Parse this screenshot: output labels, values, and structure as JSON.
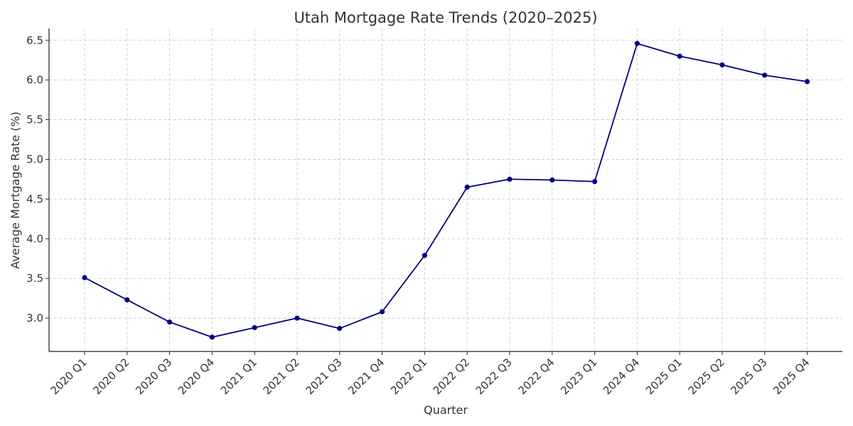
{
  "chart_data": {
    "type": "line",
    "title": "Utah Mortgage Rate Trends (2020–2025)",
    "xlabel": "Quarter",
    "ylabel": "Average Mortgage Rate (%)",
    "categories": [
      "2020 Q1",
      "2020 Q2",
      "2020 Q3",
      "2020 Q4",
      "2021 Q1",
      "2021 Q2",
      "2021 Q3",
      "2021 Q4",
      "2022 Q1",
      "2022 Q2",
      "2022 Q3",
      "2022 Q4",
      "2023 Q1",
      "2024 Q4",
      "2025 Q1",
      "2025 Q2",
      "2025 Q3",
      "2025 Q4"
    ],
    "series": [
      {
        "values": [
          3.51,
          3.23,
          2.95,
          2.76,
          2.88,
          3.0,
          2.87,
          3.08,
          3.79,
          4.65,
          4.75,
          4.74,
          4.72,
          6.46,
          6.3,
          6.19,
          6.06,
          5.98
        ],
        "color": "#000080",
        "marker": "circle"
      }
    ],
    "ylim": [
      2.58,
      6.65
    ],
    "yticks": [
      "3.0",
      "3.5",
      "4.0",
      "4.5",
      "5.0",
      "5.5",
      "6.0",
      "6.5"
    ],
    "grid": true,
    "legend": "none"
  }
}
